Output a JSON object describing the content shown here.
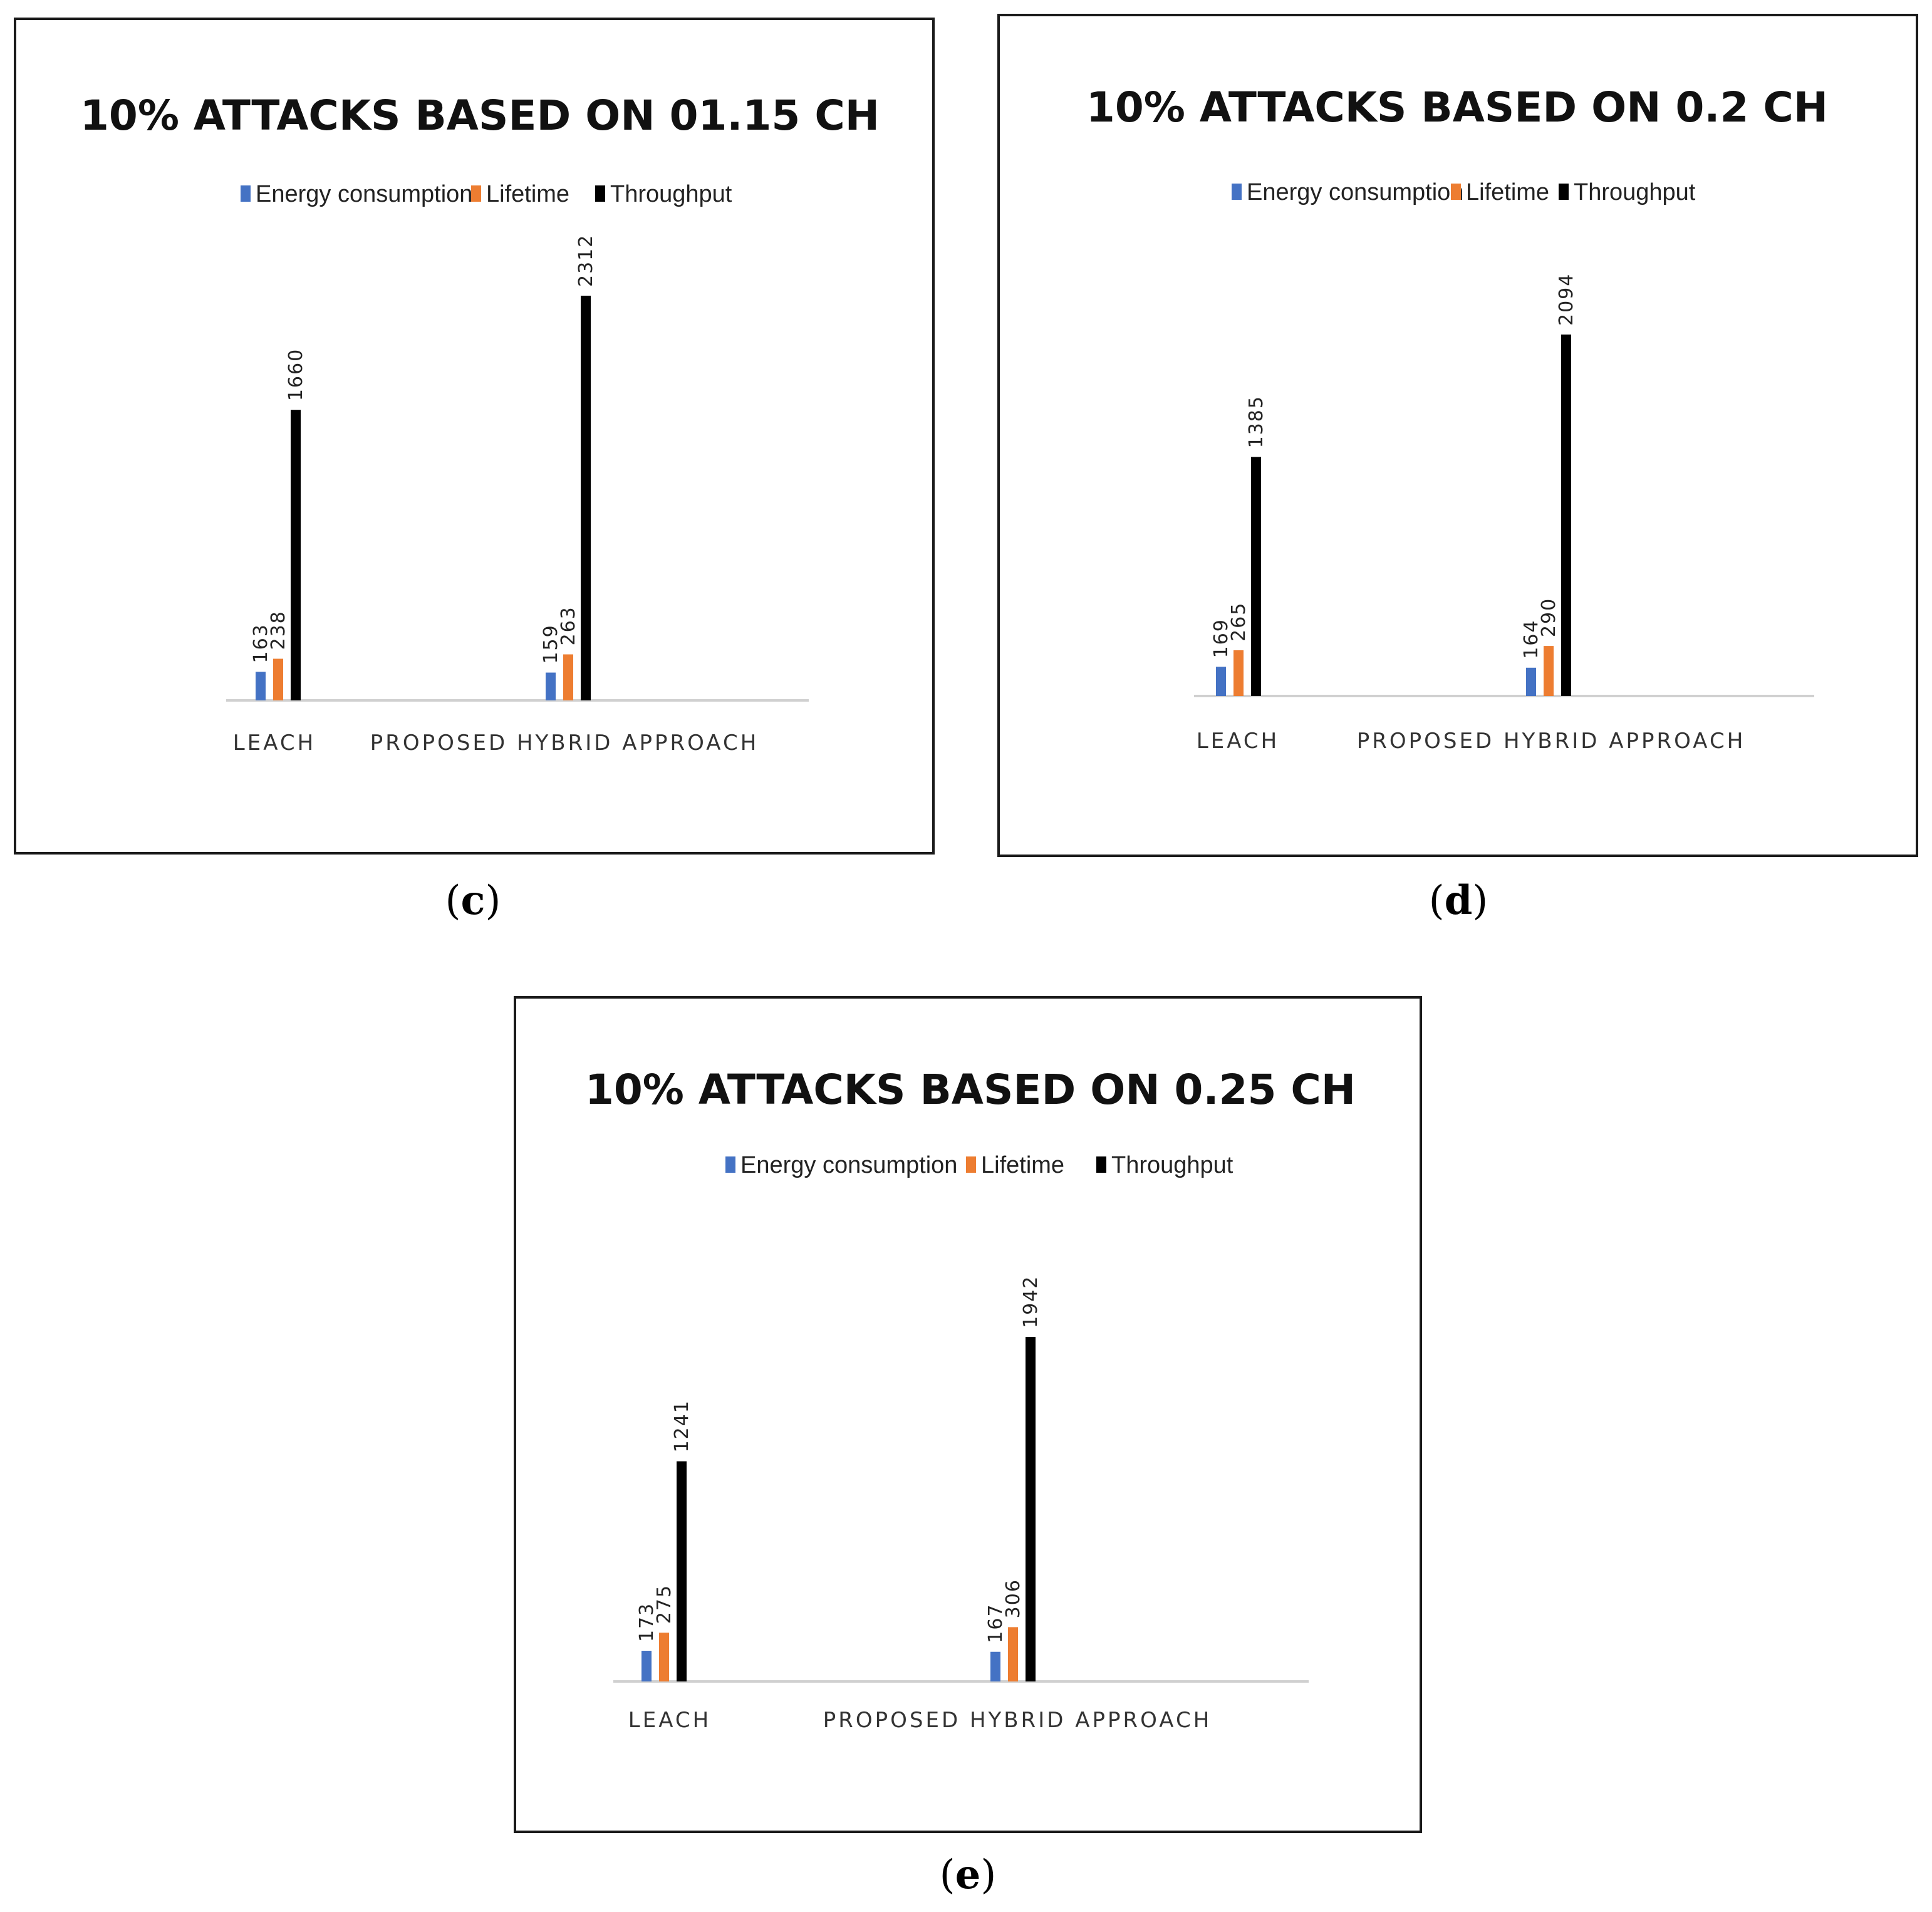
{
  "captions": {
    "c": "c",
    "d": "d",
    "e": "e"
  },
  "chart_data": [
    {
      "type": "bar",
      "title": "10% ATTACKS  BASED ON 01.15 CH",
      "categories": [
        "LEACH",
        "PROPOSED HYBRID APPROACH"
      ],
      "series": [
        {
          "name": "Energy consumption",
          "values": [
            163,
            159
          ],
          "color": "#4472C4"
        },
        {
          "name": "Lifetime",
          "values": [
            238,
            263
          ],
          "color": "#ED7D31"
        },
        {
          "name": "Throughput",
          "values": [
            1660,
            2312
          ],
          "color": "#000000"
        }
      ],
      "xlabel": "",
      "ylabel": "",
      "ylim": [
        0,
        2312
      ],
      "legend": "top-center",
      "grid": false
    },
    {
      "type": "bar",
      "title": "10% ATTACKS  BASED ON 0.2 CH",
      "categories": [
        "LEACH",
        "PROPOSED HYBRID APPROACH"
      ],
      "series": [
        {
          "name": "Energy consumption",
          "values": [
            169,
            164
          ],
          "color": "#4472C4"
        },
        {
          "name": "Lifetime",
          "values": [
            265,
            290
          ],
          "color": "#ED7D31"
        },
        {
          "name": "Throughput",
          "values": [
            1385,
            2094
          ],
          "color": "#000000"
        }
      ],
      "xlabel": "",
      "ylabel": "",
      "ylim": [
        0,
        2094
      ],
      "legend": "top-center",
      "grid": false
    },
    {
      "type": "bar",
      "title": "10% ATTACKS  BASED ON 0.25 CH",
      "categories": [
        "LEACH",
        "PROPOSED HYBRID APPROACH"
      ],
      "series": [
        {
          "name": "Energy consumption",
          "values": [
            173,
            167
          ],
          "color": "#4472C4"
        },
        {
          "name": "Lifetime",
          "values": [
            275,
            306
          ],
          "color": "#ED7D31"
        },
        {
          "name": "Throughput",
          "values": [
            1241,
            1942
          ],
          "color": "#000000"
        }
      ],
      "xlabel": "",
      "ylabel": "",
      "ylim": [
        0,
        1942
      ],
      "legend": "top-center",
      "grid": false
    }
  ]
}
